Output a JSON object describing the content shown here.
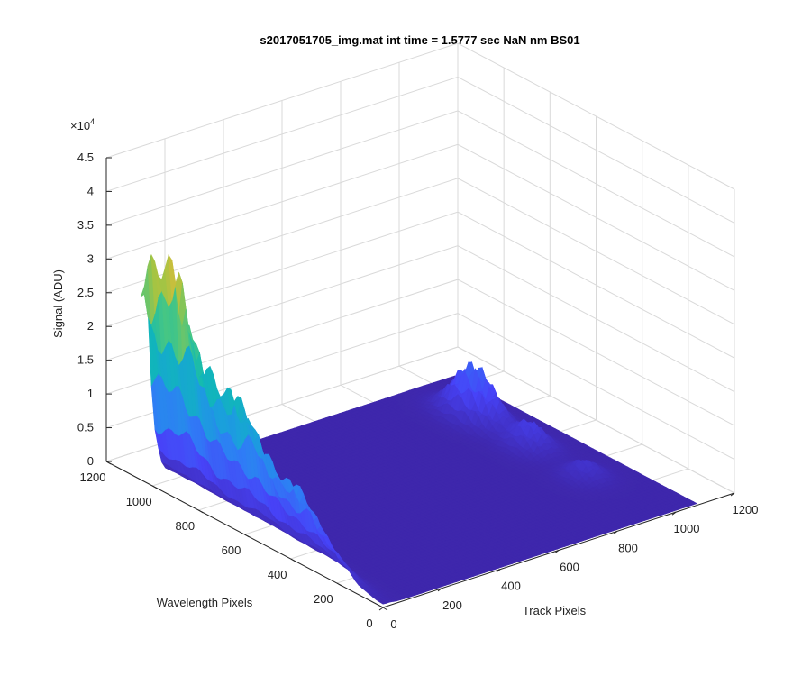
{
  "chart_data": {
    "type": "surface",
    "title": "s2017051705_img.mat int time = 1.5777 sec  NaN nm BS01",
    "xlabel": "Track Pixels",
    "ylabel": "Wavelength Pixels",
    "zlabel": "Signal (ADU)",
    "z_exponent_label": "×10",
    "z_exponent_power": "4",
    "xlim": [
      0,
      1200
    ],
    "ylim": [
      0,
      1200
    ],
    "zlim": [
      0,
      45000
    ],
    "xticks": [
      0,
      200,
      400,
      600,
      800,
      1000,
      1200
    ],
    "yticks": [
      0,
      200,
      400,
      600,
      800,
      1000,
      1200
    ],
    "zticks": [
      0,
      5000,
      10000,
      15000,
      20000,
      25000,
      30000,
      35000,
      40000,
      45000
    ],
    "xtick_labels": [
      "0",
      "200",
      "400",
      "600",
      "800",
      "1000",
      "1200"
    ],
    "ytick_labels": [
      "0",
      "200",
      "400",
      "600",
      "800",
      "1000",
      "1200"
    ],
    "ztick_labels": [
      "0",
      "0.5",
      "1",
      "1.5",
      "2",
      "2.5",
      "3",
      "3.5",
      "4",
      "4.5"
    ],
    "grid": true,
    "colormap": "parula",
    "colormap_colors": [
      "#3e26a8",
      "#4743f8",
      "#2f7cf6",
      "#1aa0dc",
      "#0fb9b5",
      "#45c685",
      "#a2c444",
      "#e9ba36",
      "#f9e022"
    ],
    "data_extent": {
      "track": [
        0,
        1072
      ],
      "wavelength": [
        0,
        1050
      ]
    },
    "features": [
      {
        "label": "",
        "track": 0,
        "wavelength": 1050,
        "peak": 35000
      },
      {
        "label": "",
        "track": 30,
        "wavelength": 900,
        "peak": 16000
      },
      {
        "label": "",
        "track": 30,
        "wavelength": 600,
        "peak": 12000
      },
      {
        "label": "",
        "track": 30,
        "wavelength": 350,
        "peak": 8000
      },
      {
        "label": "",
        "track": 940,
        "wavelength": 800,
        "peak": 8500
      },
      {
        "label": "",
        "track": 940,
        "wavelength": 560,
        "peak": 4000
      },
      {
        "label": "",
        "track": 940,
        "wavelength": 320,
        "peak": 2500
      }
    ]
  }
}
